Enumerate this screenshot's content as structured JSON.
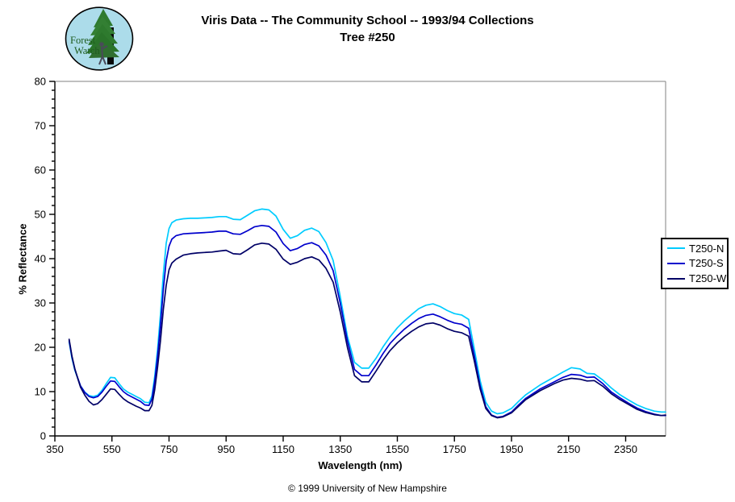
{
  "header": {
    "title_line1": "Viris Data -- The Community School -- 1993/94 Collections",
    "title_line2": "Tree #250"
  },
  "logo": {
    "line1": "Forest",
    "line2": "Watch",
    "bg_color": "#ACDCEA",
    "tree_color": "#2E7A2E",
    "text_color": "#1E5C1E"
  },
  "footer": {
    "copyright": "© 1999 University of New Hampshire"
  },
  "chart_data": {
    "type": "line",
    "title": "Viris Data -- The Community School -- 1993/94 Collections Tree #250",
    "xlabel": "Wavelength (nm)",
    "ylabel": "% Reflectance",
    "xlim": [
      350,
      2490
    ],
    "ylim": [
      0,
      80
    ],
    "xticks": [
      350,
      550,
      750,
      950,
      1150,
      1350,
      1550,
      1750,
      1950,
      2150,
      2350
    ],
    "yticks": [
      0,
      10,
      20,
      30,
      40,
      50,
      60,
      70,
      80
    ],
    "y_minor_step": 2,
    "grid": false,
    "legend_position": "right",
    "x": [
      400,
      410,
      420,
      430,
      440,
      455,
      470,
      485,
      500,
      515,
      530,
      545,
      560,
      575,
      590,
      605,
      620,
      635,
      650,
      665,
      680,
      690,
      700,
      710,
      720,
      730,
      740,
      750,
      760,
      775,
      800,
      825,
      850,
      875,
      900,
      925,
      950,
      975,
      1000,
      1025,
      1050,
      1075,
      1100,
      1125,
      1150,
      1175,
      1200,
      1225,
      1250,
      1275,
      1300,
      1325,
      1350,
      1375,
      1400,
      1425,
      1450,
      1475,
      1500,
      1525,
      1550,
      1575,
      1600,
      1625,
      1650,
      1675,
      1700,
      1725,
      1750,
      1775,
      1800,
      1820,
      1840,
      1860,
      1880,
      1900,
      1920,
      1950,
      1975,
      2000,
      2050,
      2100,
      2130,
      2160,
      2190,
      2215,
      2240,
      2270,
      2300,
      2330,
      2360,
      2390,
      2420,
      2450,
      2475,
      2490
    ],
    "series": [
      {
        "name": "T250-N",
        "color": "#00CCFF",
        "values": [
          21.2,
          17.5,
          14.8,
          13.0,
          11.3,
          9.9,
          9.1,
          8.9,
          9.2,
          10.3,
          11.8,
          13.2,
          13.1,
          11.8,
          10.6,
          9.9,
          9.4,
          8.9,
          8.4,
          7.6,
          7.5,
          9.0,
          13.5,
          19.5,
          27.5,
          36.5,
          43.5,
          46.8,
          48.1,
          48.7,
          49.0,
          49.1,
          49.1,
          49.2,
          49.3,
          49.5,
          49.5,
          48.9,
          48.8,
          49.8,
          50.8,
          51.2,
          51.0,
          49.6,
          46.6,
          44.6,
          45.2,
          46.4,
          46.9,
          46.1,
          43.6,
          39.6,
          31.5,
          22.5,
          16.6,
          15.3,
          15.3,
          17.5,
          20.1,
          22.4,
          24.4,
          26.0,
          27.4,
          28.7,
          29.5,
          29.8,
          29.2,
          28.3,
          27.6,
          27.3,
          26.3,
          19.5,
          12.5,
          7.6,
          5.6,
          5.0,
          5.2,
          6.2,
          7.8,
          9.3,
          11.5,
          13.3,
          14.4,
          15.4,
          15.1,
          14.1,
          14.0,
          12.6,
          10.8,
          9.3,
          8.1,
          7.0,
          6.2,
          5.6,
          5.4,
          5.4
        ]
      },
      {
        "name": "T250-S",
        "color": "#0000CC",
        "values": [
          21.5,
          17.8,
          15.0,
          13.1,
          11.3,
          9.8,
          8.9,
          8.6,
          8.9,
          9.9,
          11.2,
          12.4,
          12.3,
          11.1,
          10.0,
          9.3,
          8.8,
          8.3,
          7.8,
          7.0,
          6.9,
          8.3,
          12.4,
          18.0,
          25.0,
          33.0,
          39.5,
          42.8,
          44.4,
          45.2,
          45.6,
          45.7,
          45.8,
          45.9,
          46.0,
          46.2,
          46.2,
          45.6,
          45.5,
          46.3,
          47.2,
          47.5,
          47.3,
          46.0,
          43.4,
          41.8,
          42.3,
          43.2,
          43.6,
          42.9,
          40.8,
          37.3,
          30.0,
          21.5,
          15.0,
          13.6,
          13.6,
          16.0,
          18.6,
          20.9,
          22.6,
          24.1,
          25.4,
          26.5,
          27.2,
          27.5,
          26.9,
          26.1,
          25.5,
          25.2,
          24.3,
          18.0,
          11.3,
          6.6,
          4.7,
          4.2,
          4.4,
          5.4,
          7.0,
          8.5,
          10.6,
          12.2,
          13.2,
          13.9,
          13.7,
          13.2,
          13.3,
          11.8,
          9.9,
          8.6,
          7.4,
          6.3,
          5.5,
          4.9,
          4.6,
          4.6
        ]
      },
      {
        "name": "T250-W",
        "color": "#000066",
        "values": [
          21.8,
          18.0,
          15.1,
          13.0,
          11.0,
          9.2,
          7.8,
          7.0,
          7.3,
          8.2,
          9.4,
          10.6,
          10.5,
          9.4,
          8.4,
          7.7,
          7.2,
          6.7,
          6.3,
          5.7,
          5.7,
          6.9,
          10.5,
          15.5,
          21.5,
          28.5,
          34.0,
          37.5,
          39.0,
          39.9,
          40.8,
          41.1,
          41.3,
          41.4,
          41.5,
          41.7,
          41.9,
          41.1,
          41.0,
          42.0,
          43.1,
          43.5,
          43.3,
          42.1,
          39.9,
          38.7,
          39.2,
          40.0,
          40.4,
          39.7,
          37.8,
          34.7,
          28.0,
          20.0,
          13.6,
          12.2,
          12.2,
          14.6,
          17.1,
          19.3,
          21.0,
          22.4,
          23.6,
          24.6,
          25.3,
          25.5,
          25.0,
          24.2,
          23.6,
          23.3,
          22.5,
          16.8,
          10.6,
          6.2,
          4.6,
          4.1,
          4.3,
          5.2,
          6.7,
          8.2,
          10.2,
          11.8,
          12.6,
          13.0,
          12.8,
          12.4,
          12.5,
          11.2,
          9.5,
          8.2,
          7.1,
          6.0,
          5.3,
          4.8,
          4.6,
          4.7
        ]
      }
    ]
  }
}
